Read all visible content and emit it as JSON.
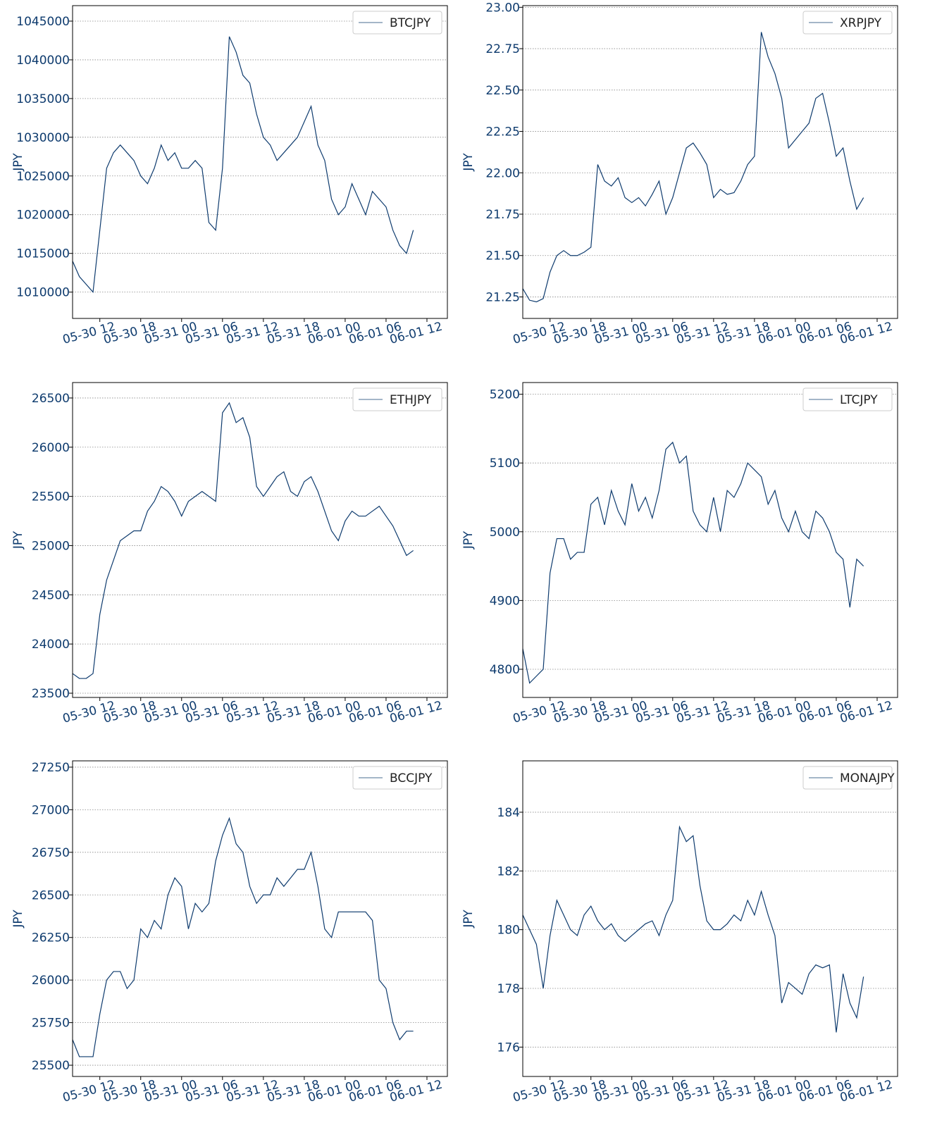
{
  "chart_data": [
    {
      "type": "line",
      "ylabel": "JPY",
      "grid": true,
      "legend": "upper right",
      "x": [
        "05-30 08",
        "05-30 09",
        "05-30 10",
        "05-30 11",
        "05-30 12",
        "05-30 13",
        "05-30 14",
        "05-30 15",
        "05-30 16",
        "05-30 17",
        "05-30 18",
        "05-30 19",
        "05-30 20",
        "05-30 21",
        "05-30 22",
        "05-30 23",
        "05-31 00",
        "05-31 01",
        "05-31 02",
        "05-31 03",
        "05-31 04",
        "05-31 05",
        "05-31 06",
        "05-31 07",
        "05-31 08",
        "05-31 09",
        "05-31 10",
        "05-31 11",
        "05-31 12",
        "05-31 13",
        "05-31 14",
        "05-31 15",
        "05-31 16",
        "05-31 17",
        "05-31 18",
        "05-31 19",
        "05-31 20",
        "05-31 21",
        "05-31 22",
        "05-31 23",
        "06-01 00",
        "06-01 01",
        "06-01 02",
        "06-01 03",
        "06-01 04",
        "06-01 05",
        "06-01 06",
        "06-01 07",
        "06-01 08",
        "06-01 09",
        "06-01 10"
      ],
      "xlim": [
        "05-30 08",
        "06-01 15"
      ],
      "xticks": [
        "05-30 12",
        "05-30 18",
        "05-31 00",
        "05-31 06",
        "05-31 12",
        "05-31 18",
        "06-01 00",
        "06-01 06",
        "06-01 12"
      ],
      "ylim": [
        1006600,
        1047000
      ],
      "yticks": [
        1010000,
        1015000,
        1020000,
        1025000,
        1030000,
        1035000,
        1040000,
        1045000
      ],
      "series": [
        {
          "name": "BTCJPY",
          "color": "#0e3b6e",
          "values": [
            1014000,
            1012000,
            1011000,
            1010000,
            1018000,
            1026000,
            1028000,
            1029000,
            1028000,
            1027000,
            1025000,
            1024000,
            1026000,
            1029000,
            1027000,
            1028000,
            1026000,
            1026000,
            1027000,
            1026000,
            1019000,
            1018000,
            1026000,
            1043000,
            1041000,
            1038000,
            1037000,
            1033000,
            1030000,
            1029000,
            1027000,
            1028000,
            1029000,
            1030000,
            1032000,
            1034000,
            1029000,
            1027000,
            1022000,
            1020000,
            1021000,
            1024000,
            1022000,
            1020000,
            1023000,
            1022000,
            1021000,
            1018000,
            1016000,
            1015000,
            1018000
          ]
        }
      ]
    },
    {
      "type": "line",
      "ylabel": "JPY",
      "grid": true,
      "legend": "upper right",
      "x": [
        "05-30 08",
        "05-30 09",
        "05-30 10",
        "05-30 11",
        "05-30 12",
        "05-30 13",
        "05-30 14",
        "05-30 15",
        "05-30 16",
        "05-30 17",
        "05-30 18",
        "05-30 19",
        "05-30 20",
        "05-30 21",
        "05-30 22",
        "05-30 23",
        "05-31 00",
        "05-31 01",
        "05-31 02",
        "05-31 03",
        "05-31 04",
        "05-31 05",
        "05-31 06",
        "05-31 07",
        "05-31 08",
        "05-31 09",
        "05-31 10",
        "05-31 11",
        "05-31 12",
        "05-31 13",
        "05-31 14",
        "05-31 15",
        "05-31 16",
        "05-31 17",
        "05-31 18",
        "05-31 19",
        "05-31 20",
        "05-31 21",
        "05-31 22",
        "05-31 23",
        "06-01 00",
        "06-01 01",
        "06-01 02",
        "06-01 03",
        "06-01 04",
        "06-01 05",
        "06-01 06",
        "06-01 07",
        "06-01 08",
        "06-01 09",
        "06-01 10"
      ],
      "xlim": [
        "05-30 08",
        "06-01 15"
      ],
      "xticks": [
        "05-30 12",
        "05-30 18",
        "05-31 00",
        "05-31 06",
        "05-31 12",
        "05-31 18",
        "06-01 00",
        "06-01 06",
        "06-01 12"
      ],
      "ylim": [
        21.12,
        23.01
      ],
      "yticks": [
        21.25,
        {
          "value": 21.5,
          "label": "21.50"
        },
        21.75,
        {
          "value": 22,
          "label": "22.00"
        },
        22.25,
        {
          "value": 22.5,
          "label": "22.50"
        },
        22.75,
        {
          "value": 23,
          "label": "23.00"
        }
      ],
      "series": [
        {
          "name": "XRPJPY",
          "color": "#0e3b6e",
          "values": [
            21.3,
            21.23,
            21.22,
            21.24,
            21.4,
            21.5,
            21.53,
            21.5,
            21.5,
            21.52,
            21.55,
            22.05,
            21.95,
            21.92,
            21.97,
            21.85,
            21.82,
            21.85,
            21.8,
            21.87,
            21.95,
            21.75,
            21.85,
            22.0,
            22.15,
            22.18,
            22.12,
            22.05,
            21.85,
            21.9,
            21.87,
            21.88,
            21.95,
            22.05,
            22.1,
            22.85,
            22.7,
            22.6,
            22.45,
            22.15,
            22.2,
            22.25,
            22.3,
            22.45,
            22.48,
            22.3,
            22.1,
            22.15,
            21.95,
            21.78,
            21.85
          ]
        }
      ]
    },
    {
      "type": "line",
      "ylabel": "JPY",
      "grid": true,
      "legend": "upper right",
      "x": [
        "05-30 08",
        "05-30 09",
        "05-30 10",
        "05-30 11",
        "05-30 12",
        "05-30 13",
        "05-30 14",
        "05-30 15",
        "05-30 16",
        "05-30 17",
        "05-30 18",
        "05-30 19",
        "05-30 20",
        "05-30 21",
        "05-30 22",
        "05-30 23",
        "05-31 00",
        "05-31 01",
        "05-31 02",
        "05-31 03",
        "05-31 04",
        "05-31 05",
        "05-31 06",
        "05-31 07",
        "05-31 08",
        "05-31 09",
        "05-31 10",
        "05-31 11",
        "05-31 12",
        "05-31 13",
        "05-31 14",
        "05-31 15",
        "05-31 16",
        "05-31 17",
        "05-31 18",
        "05-31 19",
        "05-31 20",
        "05-31 21",
        "05-31 22",
        "05-31 23",
        "06-01 00",
        "06-01 01",
        "06-01 02",
        "06-01 03",
        "06-01 04",
        "06-01 05",
        "06-01 06",
        "06-01 07",
        "06-01 08",
        "06-01 09",
        "06-01 10"
      ],
      "xlim": [
        "05-30 08",
        "06-01 15"
      ],
      "xticks": [
        "05-30 12",
        "05-30 18",
        "05-31 00",
        "05-31 06",
        "05-31 12",
        "05-31 18",
        "06-01 00",
        "06-01 06",
        "06-01 12"
      ],
      "ylim": [
        23457,
        26657
      ],
      "yticks": [
        23500,
        24000,
        24500,
        25000,
        25500,
        26000,
        26500
      ],
      "series": [
        {
          "name": "ETHJPY",
          "color": "#0e3b6e",
          "values": [
            23700,
            23650,
            23650,
            23700,
            24300,
            24650,
            24850,
            25050,
            25100,
            25150,
            25150,
            25350,
            25450,
            25600,
            25550,
            25450,
            25300,
            25450,
            25500,
            25550,
            25500,
            25450,
            26350,
            26450,
            26250,
            26300,
            26100,
            25600,
            25500,
            25600,
            25700,
            25750,
            25550,
            25500,
            25650,
            25700,
            25550,
            25350,
            25150,
            25050,
            25250,
            25350,
            25300,
            25300,
            25350,
            25400,
            25300,
            25200,
            25050,
            24900,
            24950
          ]
        }
      ]
    },
    {
      "type": "line",
      "ylabel": "JPY",
      "grid": true,
      "legend": "upper right",
      "x": [
        "05-30 08",
        "05-30 09",
        "05-30 10",
        "05-30 11",
        "05-30 12",
        "05-30 13",
        "05-30 14",
        "05-30 15",
        "05-30 16",
        "05-30 17",
        "05-30 18",
        "05-30 19",
        "05-30 20",
        "05-30 21",
        "05-30 22",
        "05-30 23",
        "05-31 00",
        "05-31 01",
        "05-31 02",
        "05-31 03",
        "05-31 04",
        "05-31 05",
        "05-31 06",
        "05-31 07",
        "05-31 08",
        "05-31 09",
        "05-31 10",
        "05-31 11",
        "05-31 12",
        "05-31 13",
        "05-31 14",
        "05-31 15",
        "05-31 16",
        "05-31 17",
        "05-31 18",
        "05-31 19",
        "05-31 20",
        "05-31 21",
        "05-31 22",
        "05-31 23",
        "06-01 00",
        "06-01 01",
        "06-01 02",
        "06-01 03",
        "06-01 04",
        "06-01 05",
        "06-01 06",
        "06-01 07",
        "06-01 08",
        "06-01 09",
        "06-01 10"
      ],
      "xlim": [
        "05-30 08",
        "06-01 15"
      ],
      "xticks": [
        "05-30 12",
        "05-30 18",
        "05-31 00",
        "05-31 06",
        "05-31 12",
        "05-31 18",
        "06-01 00",
        "06-01 06",
        "06-01 12"
      ],
      "ylim": [
        4759,
        5217
      ],
      "yticks": [
        4800,
        4900,
        5000,
        5100,
        5200
      ],
      "series": [
        {
          "name": "LTCJPY",
          "color": "#0e3b6e",
          "values": [
            4830,
            4780,
            4790,
            4800,
            4940,
            4990,
            4990,
            4960,
            4970,
            4970,
            5040,
            5050,
            5010,
            5060,
            5030,
            5010,
            5070,
            5030,
            5050,
            5020,
            5060,
            5120,
            5130,
            5100,
            5110,
            5030,
            5010,
            5000,
            5050,
            5000,
            5060,
            5050,
            5070,
            5100,
            5090,
            5080,
            5040,
            5060,
            5020,
            5000,
            5030,
            5000,
            4990,
            5030,
            5020,
            5000,
            4970,
            4960,
            4890,
            4960,
            4950
          ]
        }
      ]
    },
    {
      "type": "line",
      "ylabel": "JPY",
      "grid": true,
      "legend": "upper right",
      "x": [
        "05-30 08",
        "05-30 09",
        "05-30 10",
        "05-30 11",
        "05-30 12",
        "05-30 13",
        "05-30 14",
        "05-30 15",
        "05-30 16",
        "05-30 17",
        "05-30 18",
        "05-30 19",
        "05-30 20",
        "05-30 21",
        "05-30 22",
        "05-30 23",
        "05-31 00",
        "05-31 01",
        "05-31 02",
        "05-31 03",
        "05-31 04",
        "05-31 05",
        "05-31 06",
        "05-31 07",
        "05-31 08",
        "05-31 09",
        "05-31 10",
        "05-31 11",
        "05-31 12",
        "05-31 13",
        "05-31 14",
        "05-31 15",
        "05-31 16",
        "05-31 17",
        "05-31 18",
        "05-31 19",
        "05-31 20",
        "05-31 21",
        "05-31 22",
        "05-31 23",
        "06-01 00",
        "06-01 01",
        "06-01 02",
        "06-01 03",
        "06-01 04",
        "06-01 05",
        "06-01 06",
        "06-01 07",
        "06-01 08",
        "06-01 09",
        "06-01 10"
      ],
      "xlim": [
        "05-30 08",
        "06-01 15"
      ],
      "xticks": [
        "05-30 12",
        "05-30 18",
        "05-31 00",
        "05-31 06",
        "05-31 12",
        "05-31 18",
        "06-01 00",
        "06-01 06",
        "06-01 12"
      ],
      "ylim": [
        25434,
        27287
      ],
      "yticks": [
        25500,
        25750,
        26000,
        26250,
        26500,
        26750,
        27000,
        27250
      ],
      "series": [
        {
          "name": "BCCJPY",
          "color": "#0e3b6e",
          "values": [
            25650,
            25550,
            25550,
            25550,
            25800,
            26000,
            26050,
            26050,
            25950,
            26000,
            26300,
            26250,
            26350,
            26300,
            26500,
            26600,
            26550,
            26300,
            26450,
            26400,
            26450,
            26700,
            26850,
            26950,
            26800,
            26750,
            26550,
            26450,
            26500,
            26500,
            26600,
            26550,
            26600,
            26650,
            26650,
            26750,
            26550,
            26300,
            26250,
            26400,
            26400,
            26400,
            26400,
            26400,
            26350,
            26000,
            25950,
            25750,
            25650,
            25700,
            25700
          ]
        }
      ]
    },
    {
      "type": "line",
      "ylabel": "JPY",
      "grid": true,
      "legend": "upper right",
      "x": [
        "05-30 08",
        "05-30 09",
        "05-30 10",
        "05-30 11",
        "05-30 12",
        "05-30 13",
        "05-30 14",
        "05-30 15",
        "05-30 16",
        "05-30 17",
        "05-30 18",
        "05-30 19",
        "05-30 20",
        "05-30 21",
        "05-30 22",
        "05-30 23",
        "05-31 00",
        "05-31 01",
        "05-31 02",
        "05-31 03",
        "05-31 04",
        "05-31 05",
        "05-31 06",
        "05-31 07",
        "05-31 08",
        "05-31 09",
        "05-31 10",
        "05-31 11",
        "05-31 12",
        "05-31 13",
        "05-31 14",
        "05-31 15",
        "05-31 16",
        "05-31 17",
        "05-31 18",
        "05-31 19",
        "05-31 20",
        "05-31 21",
        "05-31 22",
        "05-31 23",
        "06-01 00",
        "06-01 01",
        "06-01 02",
        "06-01 03",
        "06-01 04",
        "06-01 05",
        "06-01 06",
        "06-01 07",
        "06-01 08",
        "06-01 09",
        "06-01 10"
      ],
      "xlim": [
        "05-30 08",
        "06-01 15"
      ],
      "xticks": [
        "05-30 12",
        "05-30 18",
        "05-31 00",
        "05-31 06",
        "05-31 12",
        "05-31 18",
        "06-01 00",
        "06-01 06",
        "06-01 12"
      ],
      "ylim": [
        175.0,
        185.75
      ],
      "yticks": [
        176,
        178,
        180,
        182,
        184
      ],
      "series": [
        {
          "name": "MONAJPY",
          "color": "#0e3b6e",
          "values": [
            180.5,
            180.0,
            179.5,
            178.0,
            179.8,
            181.0,
            180.5,
            180.0,
            179.8,
            180.5,
            180.8,
            180.3,
            180.0,
            180.2,
            179.8,
            179.6,
            179.8,
            180.0,
            180.2,
            180.3,
            179.8,
            180.5,
            181.0,
            183.5,
            183.0,
            183.2,
            181.5,
            180.3,
            180.0,
            180.0,
            180.2,
            180.5,
            180.3,
            181.0,
            180.5,
            181.3,
            180.5,
            179.8,
            177.5,
            178.2,
            178.0,
            177.8,
            178.5,
            178.8,
            178.7,
            178.8,
            176.5,
            178.5,
            177.5,
            177.0,
            178.4
          ]
        }
      ]
    }
  ]
}
